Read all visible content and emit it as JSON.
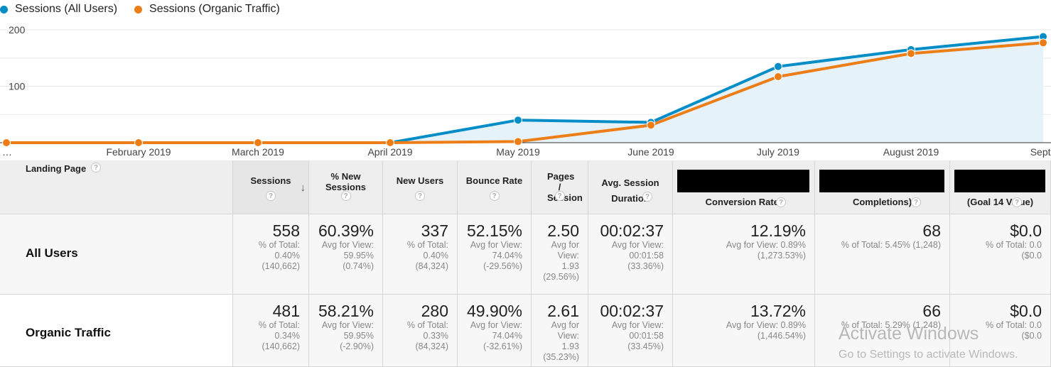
{
  "legend": {
    "all_users": {
      "label": "Sessions (All Users)",
      "color": "#058dc7"
    },
    "organic": {
      "label": "Sessions (Organic Traffic)",
      "color": "#ed7e17"
    }
  },
  "chart_data": {
    "type": "line",
    "x_labels": [
      "…",
      "February 2019",
      "March 2019",
      "April 2019",
      "May 2019",
      "June 2019",
      "July 2019",
      "August 2019",
      "Septe"
    ],
    "y_ticks": [
      {
        "label": "200",
        "value": 200
      },
      {
        "label": "100",
        "value": 100
      }
    ],
    "ylim": [
      0,
      200
    ],
    "series": [
      {
        "name": "Sessions (All Users)",
        "color": "#058dc7",
        "values": [
          0,
          0,
          0,
          0,
          40,
          36,
          135,
          165,
          188
        ]
      },
      {
        "name": "Sessions (Organic Traffic)",
        "color": "#ed7e17",
        "values": [
          0,
          0,
          0,
          0,
          2,
          31,
          117,
          158,
          177
        ]
      }
    ],
    "area_color": "#e5f2f9"
  },
  "table": {
    "landing_page_label": "Landing Page",
    "help_glyph": "?",
    "sort_glyph": "↓",
    "columns": [
      {
        "label": "Sessions",
        "sorted": true
      },
      {
        "label": "% New Sessions"
      },
      {
        "label": "New Users"
      },
      {
        "label": "Bounce Rate"
      },
      {
        "label": "Pages / Session"
      },
      {
        "label": "Avg. Session Duration"
      },
      {
        "label": "Conversion Rate)",
        "redacted": true
      },
      {
        "label": "Completions)",
        "redacted": true
      },
      {
        "label": "(Goal 14 Value)",
        "redacted": true
      }
    ],
    "rows": [
      {
        "name": "All Users",
        "cells": [
          {
            "value": "558",
            "sub": [
              "% of Total:",
              "0.40%",
              "(140,662)"
            ]
          },
          {
            "value": "60.39%",
            "sub": [
              "Avg for View:",
              "59.95%",
              "(0.74%)"
            ]
          },
          {
            "value": "337",
            "sub": [
              "% of Total:",
              "0.40%",
              "(84,324)"
            ]
          },
          {
            "value": "52.15%",
            "sub": [
              "Avg for View:",
              "74.04%",
              "(-29.56%)"
            ]
          },
          {
            "value": "2.50",
            "sub": [
              "Avg for",
              "View:",
              "1.93",
              "(29.56%)"
            ]
          },
          {
            "value": "00:02:37",
            "sub": [
              "Avg for View:",
              "00:01:58",
              "(33.36%)"
            ]
          },
          {
            "value": "12.19%",
            "sub": [
              "Avg for View: 0.89%",
              "(1,273.53%)"
            ]
          },
          {
            "value": "68",
            "sub": [
              "% of Total: 5.45% (1,248)"
            ]
          },
          {
            "value": "$0.0",
            "sub": [
              "% of Total: 0.0",
              "($0.0"
            ]
          }
        ]
      },
      {
        "name": "Organic Traffic",
        "cells": [
          {
            "value": "481",
            "sub": [
              "% of Total:",
              "0.34%",
              "(140,662)"
            ]
          },
          {
            "value": "58.21%",
            "sub": [
              "Avg for View:",
              "59.95%",
              "(-2.90%)"
            ]
          },
          {
            "value": "280",
            "sub": [
              "% of Total:",
              "0.33%",
              "(84,324)"
            ]
          },
          {
            "value": "49.90%",
            "sub": [
              "Avg for View:",
              "74.04%",
              "(-32.61%)"
            ]
          },
          {
            "value": "2.61",
            "sub": [
              "Avg for",
              "View:",
              "1.93",
              "(35.23%)"
            ]
          },
          {
            "value": "00:02:37",
            "sub": [
              "Avg for View:",
              "00:01:58",
              "(33.45%)"
            ]
          },
          {
            "value": "13.72%",
            "sub": [
              "Avg for View: 0.89%",
              "(1,446.54%)"
            ]
          },
          {
            "value": "66",
            "sub": [
              "% of Total: 5.29% (1,248)"
            ]
          },
          {
            "value": "$0.0",
            "sub": [
              "% of Total: 0.0",
              "($0.0"
            ]
          }
        ]
      }
    ]
  },
  "watermark": {
    "title": "Activate Windows",
    "subtitle": "Go to Settings to activate Windows."
  }
}
